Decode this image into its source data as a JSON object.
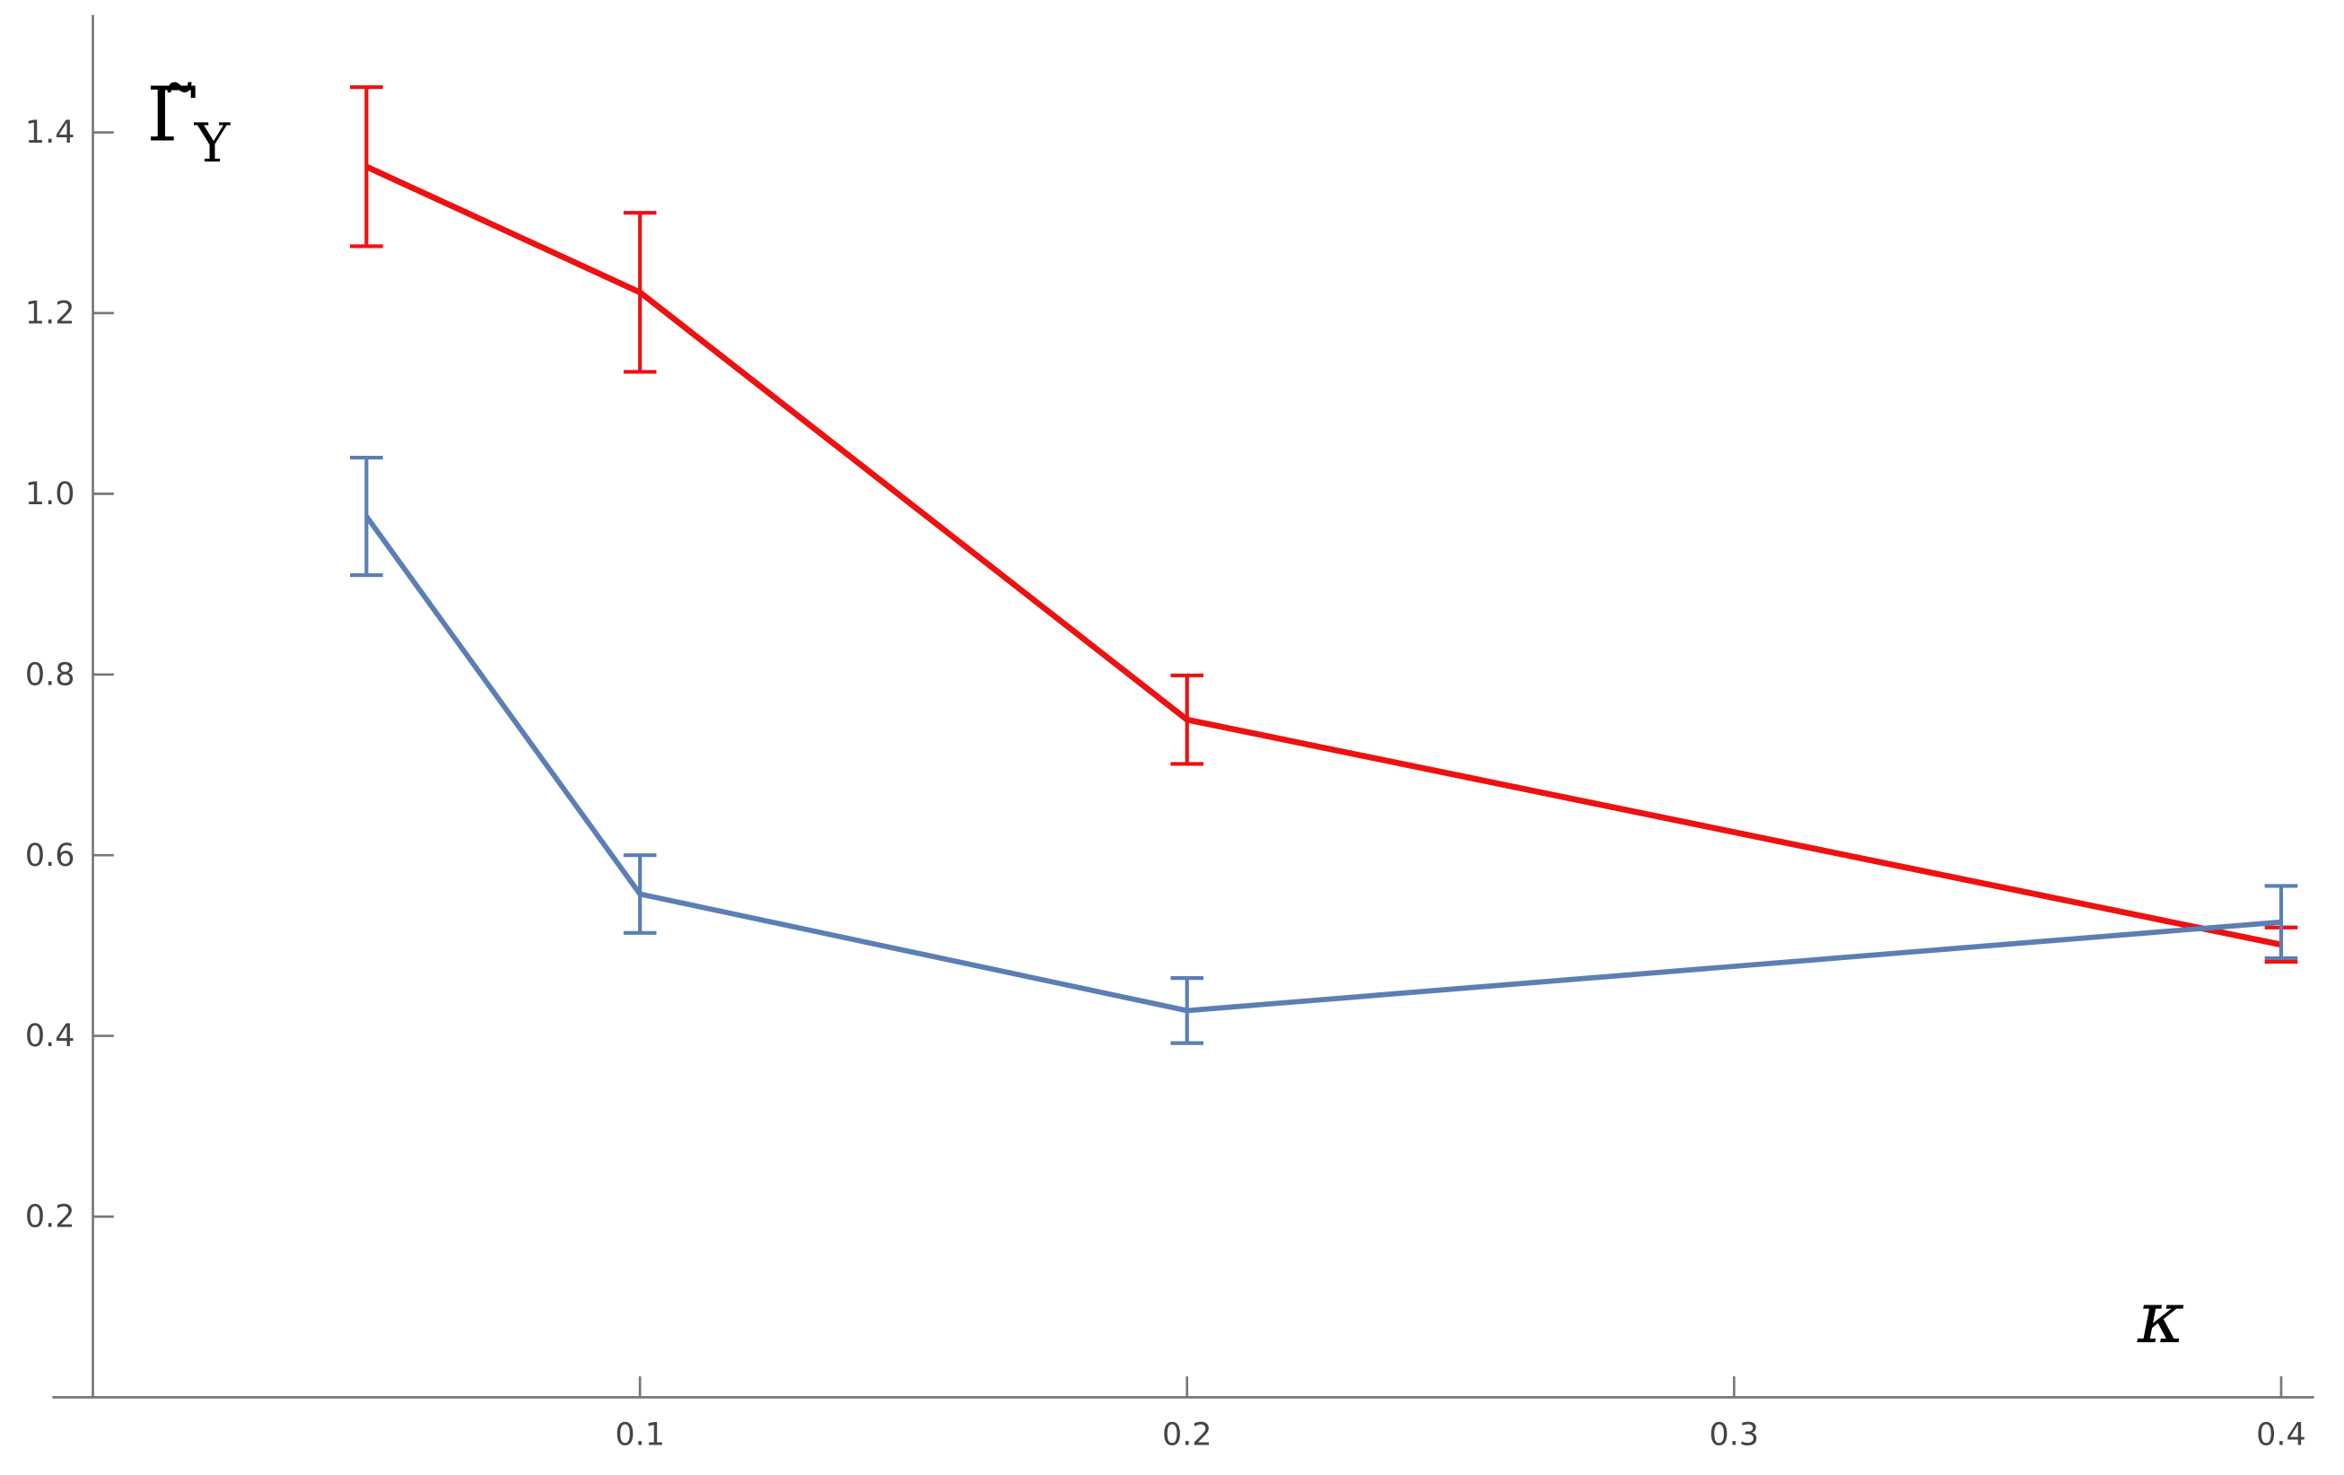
{
  "chart_data": {
    "type": "errorline",
    "ylabel": {
      "main": "Γ̃",
      "sub": "Y"
    },
    "xlabel": "κ",
    "x": [
      0.05,
      0.1,
      0.2,
      0.4
    ],
    "series": [
      {
        "color": "#ee1111",
        "values": [
          1.362,
          1.223,
          0.75,
          0.501
        ],
        "errors": [
          0.088,
          0.088,
          0.049,
          0.019
        ]
      },
      {
        "color": "#5b7fb5",
        "values": [
          0.975,
          0.557,
          0.428,
          0.526
        ],
        "errors": [
          0.065,
          0.043,
          0.036,
          0.04
        ]
      }
    ],
    "xlim": [
      -0.0074,
      0.406
    ],
    "ylim": [
      0,
      1.53
    ],
    "xticks": [
      0.1,
      0.2,
      0.3,
      0.4
    ],
    "yticks": [
      0.2,
      0.4,
      0.6,
      0.8,
      {
        "value": 1.0,
        "label": "1.0"
      },
      1.2,
      1.4
    ]
  }
}
